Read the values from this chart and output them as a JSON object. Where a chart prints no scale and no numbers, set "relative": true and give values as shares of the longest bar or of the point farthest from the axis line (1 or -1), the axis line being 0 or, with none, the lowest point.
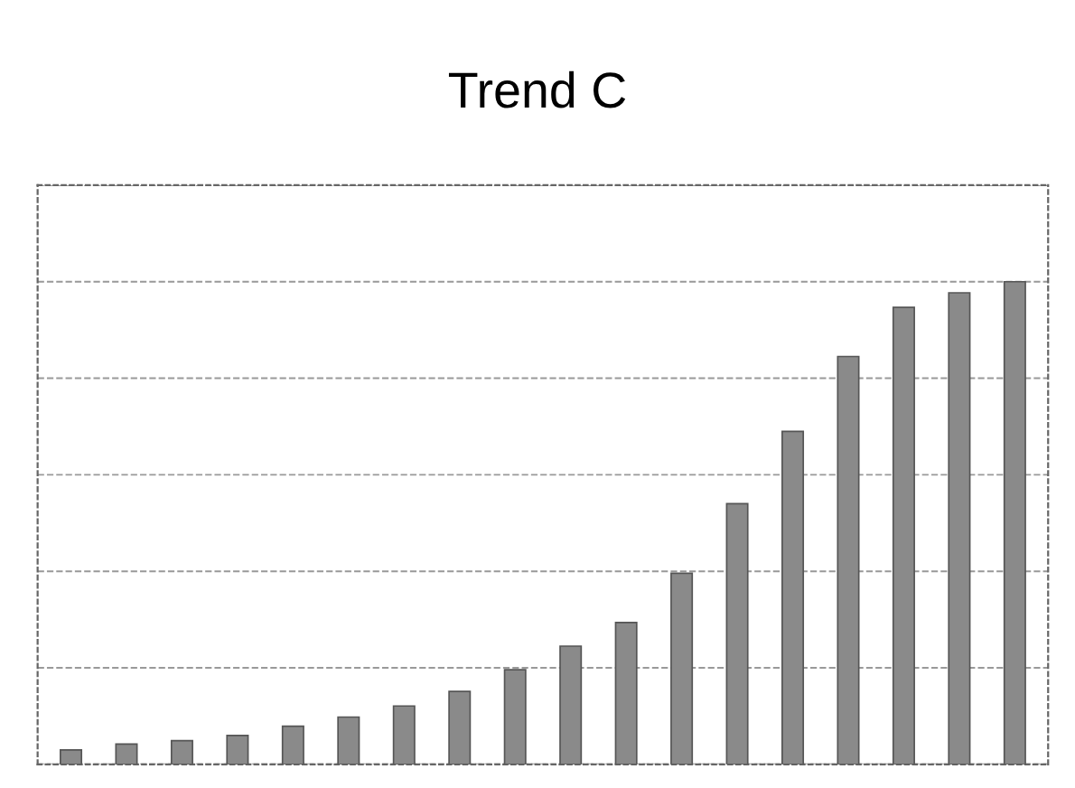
{
  "chart_data": {
    "type": "bar",
    "title": "Trend C",
    "relative": true,
    "grid": "y",
    "color": "#8a8a8a",
    "categories": [
      null,
      null,
      null,
      null,
      null,
      null,
      null,
      null,
      null,
      null,
      null,
      null,
      null,
      null,
      null,
      null,
      null,
      null
    ],
    "values": [
      0.03,
      0.042,
      0.049,
      0.06,
      0.079,
      0.098,
      0.121,
      0.151,
      0.196,
      0.245,
      0.294,
      0.396,
      0.54,
      0.69,
      0.845,
      0.947,
      0.977,
      1
    ]
  }
}
